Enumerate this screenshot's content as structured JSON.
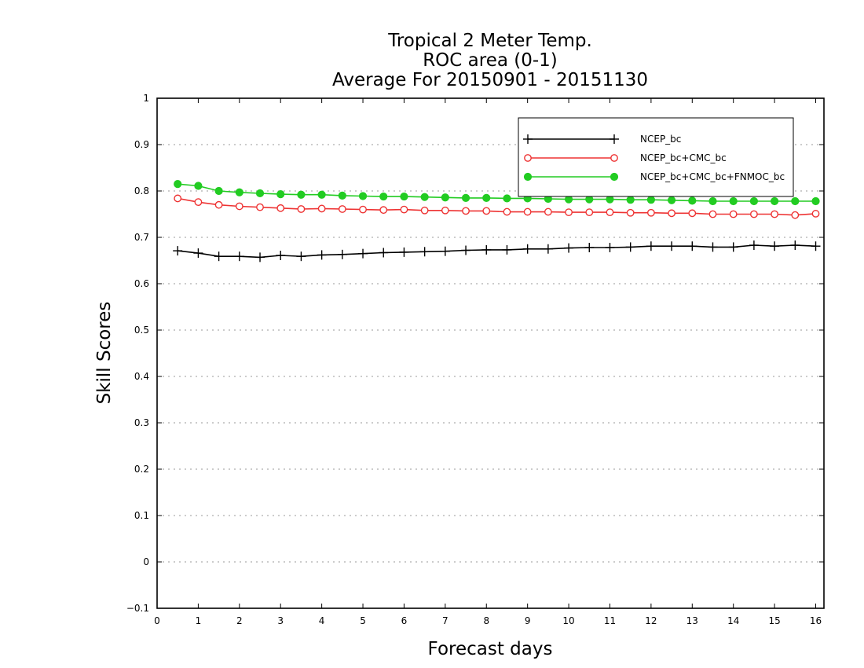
{
  "chart_data": {
    "type": "line",
    "title_lines": [
      "Tropical 2 Meter Temp.",
      "ROC area (0-1)",
      "Average For 20150901 - 20151130"
    ],
    "xlabel": "Forecast days",
    "ylabel": "Skill Scores",
    "xlim": [
      0,
      16.2
    ],
    "ylim": [
      -0.1,
      1.0
    ],
    "x_ticks": [
      0,
      1,
      2,
      3,
      4,
      5,
      6,
      7,
      8,
      9,
      10,
      11,
      12,
      13,
      14,
      15,
      16
    ],
    "y_ticks": [
      -0.1,
      0,
      0.1,
      0.2,
      0.3,
      0.4,
      0.5,
      0.6,
      0.7,
      0.8,
      0.9,
      1.0
    ],
    "y_tick_labels": [
      "−0.1",
      "0",
      "0.1",
      "0.2",
      "0.3",
      "0.4",
      "0.5",
      "0.6",
      "0.7",
      "0.8",
      "0.9",
      "1"
    ],
    "grid": "horizontal-dotted",
    "legend_position": "top-right",
    "x": [
      0.5,
      1,
      1.5,
      2,
      2.5,
      3,
      3.5,
      4,
      4.5,
      5,
      5.5,
      6,
      6.5,
      7,
      7.5,
      8,
      8.5,
      9,
      9.5,
      10,
      10.5,
      11,
      11.5,
      12,
      12.5,
      13,
      13.5,
      14,
      14.5,
      15,
      15.5,
      16
    ],
    "series": [
      {
        "name": "NCEP_bc",
        "color": "#000000",
        "marker": "plus",
        "values": [
          0.671,
          0.666,
          0.659,
          0.659,
          0.657,
          0.661,
          0.659,
          0.662,
          0.663,
          0.665,
          0.667,
          0.668,
          0.669,
          0.67,
          0.672,
          0.673,
          0.673,
          0.675,
          0.675,
          0.677,
          0.678,
          0.678,
          0.679,
          0.681,
          0.681,
          0.681,
          0.679,
          0.679,
          0.683,
          0.681,
          0.683,
          0.681
        ]
      },
      {
        "name": "NCEP_bc+CMC_bc",
        "color": "#ee3333",
        "marker": "open-circle",
        "values": [
          0.784,
          0.776,
          0.77,
          0.767,
          0.765,
          0.763,
          0.761,
          0.762,
          0.761,
          0.76,
          0.759,
          0.76,
          0.758,
          0.758,
          0.757,
          0.757,
          0.755,
          0.755,
          0.755,
          0.754,
          0.754,
          0.754,
          0.753,
          0.753,
          0.752,
          0.752,
          0.75,
          0.75,
          0.75,
          0.75,
          0.748,
          0.751
        ]
      },
      {
        "name": "NCEP_bc+CMC_bc+FNMOC_bc",
        "color": "#22cc22",
        "marker": "filled-circle",
        "values": [
          0.815,
          0.811,
          0.8,
          0.797,
          0.795,
          0.793,
          0.792,
          0.792,
          0.79,
          0.789,
          0.788,
          0.788,
          0.787,
          0.786,
          0.785,
          0.785,
          0.784,
          0.784,
          0.783,
          0.782,
          0.782,
          0.782,
          0.781,
          0.781,
          0.78,
          0.779,
          0.778,
          0.778,
          0.778,
          0.778,
          0.778,
          0.778
        ]
      }
    ]
  }
}
